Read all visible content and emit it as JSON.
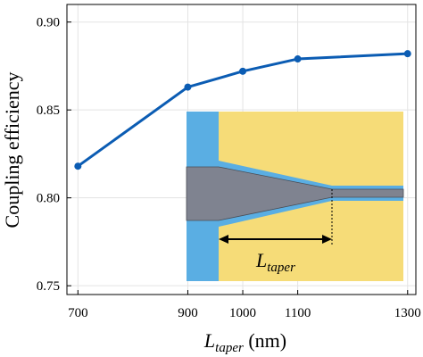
{
  "chart_data": {
    "type": "line",
    "xlabel": {
      "main": "L",
      "sub": "taper",
      "unit": " (nm)"
    },
    "ylabel": "Coupling efficiency",
    "xlim": [
      680,
      1315
    ],
    "ylim": [
      0.745,
      0.91
    ],
    "xticks": [
      700,
      900,
      1000,
      1100,
      1300
    ],
    "yticks": [
      0.75,
      0.8,
      0.85,
      0.9
    ],
    "ytick_labels": [
      "0.75",
      "0.80",
      "0.85",
      "0.90"
    ],
    "grid": true,
    "series": [
      {
        "x": [
          700,
          900,
          1000,
          1100,
          1300
        ],
        "y": [
          0.818,
          0.863,
          0.872,
          0.879,
          0.882
        ],
        "color": "#0b5cb3"
      }
    ],
    "inset": {
      "label_main": "L",
      "label_sub": "taper",
      "colors": {
        "cladding": "#f6dc78",
        "waveguide": "#5aaee3",
        "taper": "#7f8390"
      }
    }
  }
}
